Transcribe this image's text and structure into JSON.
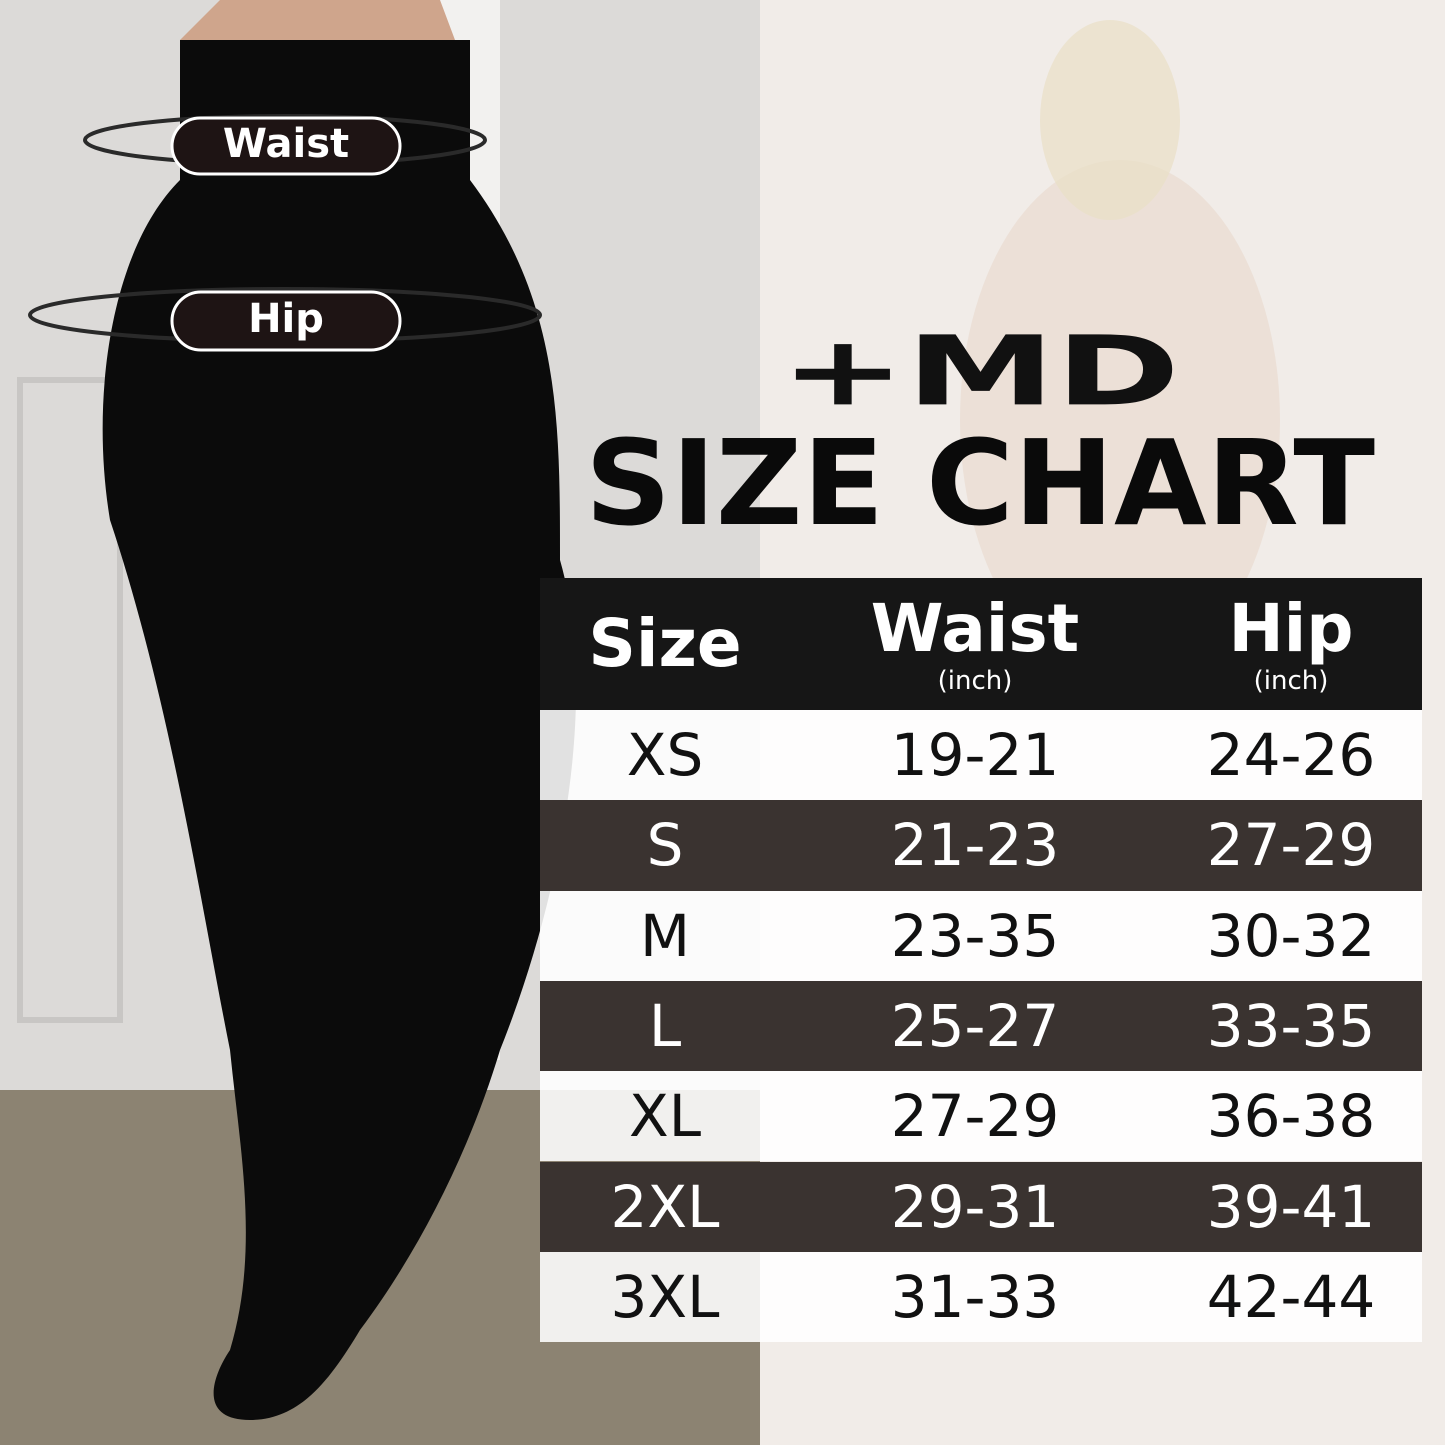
{
  "labels": {
    "waist": "Waist",
    "hip": "Hip"
  },
  "logo": "+MD",
  "title": "SIZE CHART",
  "table": {
    "header": [
      {
        "label": "Size"
      },
      {
        "label": "Waist",
        "unit": "(inch)"
      },
      {
        "label": "Hip",
        "unit": "(inch)"
      }
    ],
    "rows": [
      [
        "XS",
        "19-21",
        "24-26"
      ],
      [
        "S",
        "21-23",
        "27-29"
      ],
      [
        "M",
        "23-35",
        "30-32"
      ],
      [
        "L",
        "25-27",
        "33-35"
      ],
      [
        "XL",
        "27-29",
        "36-38"
      ],
      [
        "2XL",
        "29-31",
        "39-41"
      ],
      [
        "3XL",
        "31-33",
        "42-44"
      ]
    ]
  }
}
